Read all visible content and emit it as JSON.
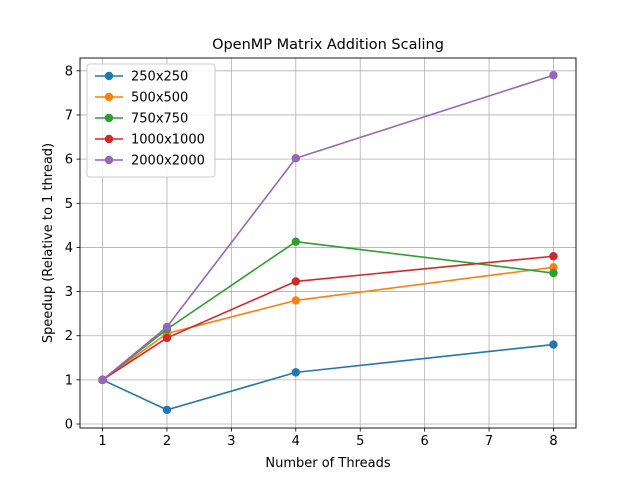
{
  "chart_data": {
    "type": "line",
    "title": "OpenMP Matrix Addition Scaling",
    "xlabel": "Number of Threads",
    "ylabel": "Speedup (Relative to 1 thread)",
    "xlim": [
      0.65,
      8.35
    ],
    "ylim": [
      -0.09,
      8.29
    ],
    "xticks": [
      1,
      2,
      3,
      4,
      5,
      6,
      7,
      8
    ],
    "yticks": [
      0,
      1,
      2,
      3,
      4,
      5,
      6,
      7,
      8
    ],
    "grid": true,
    "legend_position": "upper-left",
    "x": [
      1,
      2,
      4,
      8
    ],
    "series": [
      {
        "name": "250x250",
        "color": "#1f77b4",
        "values": [
          1.0,
          0.32,
          1.17,
          1.8
        ]
      },
      {
        "name": "500x500",
        "color": "#ff7f0e",
        "values": [
          1.0,
          2.05,
          2.8,
          3.55
        ]
      },
      {
        "name": "750x750",
        "color": "#2ca02c",
        "values": [
          1.0,
          2.15,
          4.13,
          3.42
        ]
      },
      {
        "name": "1000x1000",
        "color": "#d62728",
        "values": [
          1.0,
          1.95,
          3.23,
          3.8
        ]
      },
      {
        "name": "2000x2000",
        "color": "#9467bd",
        "values": [
          1.0,
          2.2,
          6.02,
          7.9
        ]
      }
    ]
  }
}
